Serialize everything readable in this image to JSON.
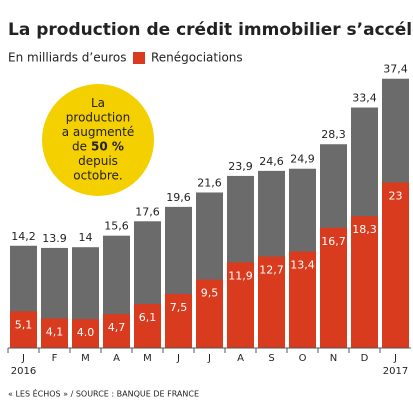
{
  "chart_data": {
    "type": "bar",
    "title": "La production de crédit immobilier s’accélère",
    "subtitle": "En milliards d’euros",
    "categories": [
      "J",
      "F",
      "M",
      "A",
      "M",
      "J",
      "J",
      "A",
      "S",
      "O",
      "N",
      "D",
      "J"
    ],
    "years": [
      "2016",
      null,
      null,
      null,
      null,
      null,
      null,
      null,
      null,
      null,
      null,
      null,
      "2017"
    ],
    "series": [
      {
        "color": "#6b6b6b",
        "values": [
          14.2,
          13.9,
          14,
          15.6,
          17.6,
          19.6,
          21.6,
          23.9,
          24.6,
          24.9,
          28.3,
          33.4,
          37.4
        ],
        "value_labels": [
          "14,2",
          "13.9",
          "14",
          "15,6",
          "17,6",
          "19,6",
          "21,6",
          "23,9",
          "24,6",
          "24,9",
          "28,3",
          "33,4",
          "37,4"
        ]
      },
      {
        "name": "Renégociations",
        "color": "#d93b1f",
        "values": [
          5.1,
          4.1,
          4.0,
          4.7,
          6.1,
          7.5,
          9.5,
          11.9,
          12.7,
          13.4,
          16.7,
          18.3,
          23
        ],
        "value_labels": [
          "5,1",
          "4,1",
          "4.0",
          "4,7",
          "6,1",
          "7,5",
          "9,5",
          "11,9",
          "12,7",
          "13,4",
          "16,7",
          "18,3",
          "23"
        ]
      }
    ],
    "ylim": [
      0,
      40
    ],
    "annotation": [
      {
        "text": "La"
      },
      {
        "text": "production"
      },
      {
        "text": "a augmenté"
      },
      {
        "text": "de",
        "bold": "50 %"
      },
      {
        "text": "depuis"
      },
      {
        "text": "octobre."
      }
    ],
    "annotation_color": "#f5d000",
    "source": "« LES ÉCHOS » / SOURCE : BANQUE DE FRANCE"
  }
}
